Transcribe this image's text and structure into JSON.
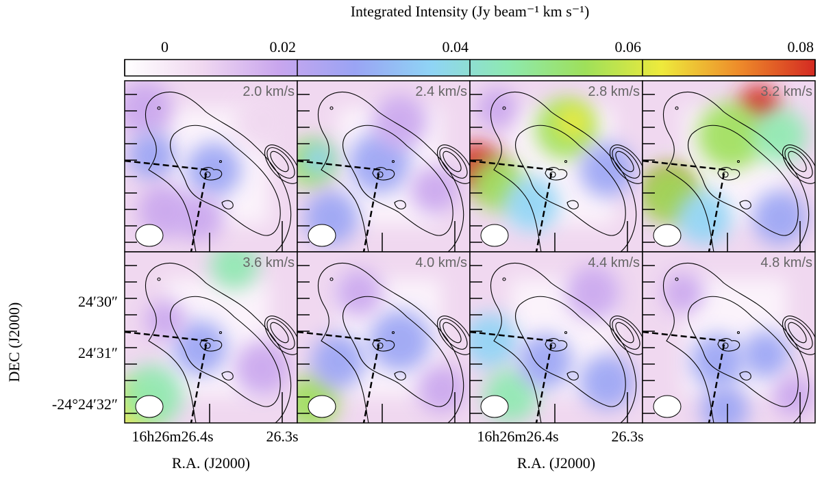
{
  "colorbar": {
    "title": "Integrated Intensity (Jy beam⁻¹ km s⁻¹)",
    "lim": [
      0,
      0.08
    ],
    "ticks": [
      0,
      0.02,
      0.04,
      0.06,
      0.08
    ],
    "colors": [
      "#ffffff",
      "#f0d8f0",
      "#c9a6ee",
      "#9aa4f4",
      "#8fd4f5",
      "#8ee9b0",
      "#9ee05a",
      "#eeea3c",
      "#ee8c2a",
      "#d42a22"
    ]
  },
  "panels": [
    {
      "label": "2.0 km/s"
    },
    {
      "label": "2.4 km/s"
    },
    {
      "label": "2.8 km/s"
    },
    {
      "label": "3.2 km/s"
    },
    {
      "label": "3.6 km/s"
    },
    {
      "label": "4.0 km/s"
    },
    {
      "label": "4.4 km/s"
    },
    {
      "label": "4.8 km/s"
    }
  ],
  "y_axis": {
    "label": "DEC (J2000)",
    "ticks": [
      "24′30″",
      "24′31″",
      "-24°24′32″"
    ]
  },
  "x_axes": [
    {
      "label": "R.A. (J2000)",
      "ticks": [
        "16h26m26.4s",
        "26.3s"
      ]
    },
    {
      "label": "R.A. (J2000)",
      "ticks": [
        "16h26m26.4s",
        "26.3s"
      ]
    }
  ]
}
